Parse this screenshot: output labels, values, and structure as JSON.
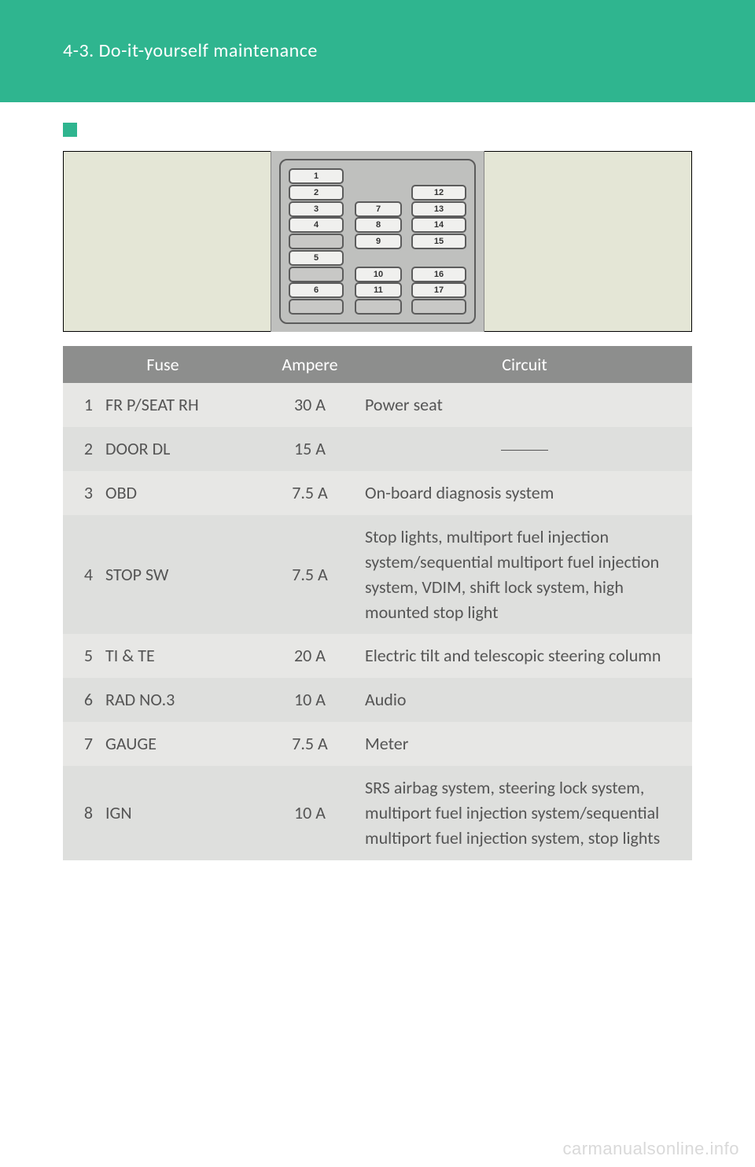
{
  "colors": {
    "header_bg": "#2fb58f",
    "diagram_bg": "#e4e6d6",
    "diagram_panel": "#bfc0be",
    "table_header_bg": "#8d8e8d",
    "row_alt_a": "#e7e7e5",
    "row_alt_b": "#dedfdd",
    "text_body": "#555555",
    "marker_fill": "#2fb58f"
  },
  "header": {
    "section": "4-3. Do-it-yourself maintenance"
  },
  "diagram": {
    "note_label": "",
    "col_a": [
      {
        "n": "1"
      },
      {
        "n": "2"
      },
      {
        "n": "3"
      },
      {
        "n": "4"
      },
      {
        "empty": true
      },
      {
        "n": "5"
      },
      {
        "empty": true
      },
      {
        "n": "6"
      },
      {
        "empty": true
      }
    ],
    "col_b": [
      {
        "gap": true
      },
      {
        "gap": true
      },
      {
        "n": "7"
      },
      {
        "n": "8"
      },
      {
        "n": "9"
      },
      {
        "gap": true
      },
      {
        "n": "10"
      },
      {
        "n": "11"
      },
      {
        "empty": true
      }
    ],
    "col_c": [
      {
        "gap": true
      },
      {
        "n": "12"
      },
      {
        "n": "13"
      },
      {
        "n": "14"
      },
      {
        "n": "15"
      },
      {
        "gap": true
      },
      {
        "n": "16"
      },
      {
        "n": "17"
      },
      {
        "empty": true
      }
    ],
    "tag": ""
  },
  "table": {
    "headers": {
      "fuse": "Fuse",
      "ampere": "Ampere",
      "circuit": "Circuit"
    },
    "rows": [
      {
        "idx": "1",
        "fuse": "FR P/SEAT RH",
        "amp": "30 A",
        "circuit": "Power seat"
      },
      {
        "idx": "2",
        "fuse": "DOOR DL",
        "amp": "15 A",
        "circuit": "",
        "dash": true
      },
      {
        "idx": "3",
        "fuse": "OBD",
        "amp": "7.5 A",
        "circuit": "On-board diagnosis system"
      },
      {
        "idx": "4",
        "fuse": "STOP SW",
        "amp": "7.5 A",
        "circuit": "Stop lights, multiport fuel injection system/sequential multiport fuel injection system, VDIM, shift lock system, high mounted stop light"
      },
      {
        "idx": "5",
        "fuse": "TI & TE",
        "amp": "20 A",
        "circuit": "Electric tilt and telescopic steering column"
      },
      {
        "idx": "6",
        "fuse": "RAD NO.3",
        "amp": "10 A",
        "circuit": "Audio"
      },
      {
        "idx": "7",
        "fuse": "GAUGE",
        "amp": "7.5 A",
        "circuit": "Meter"
      },
      {
        "idx": "8",
        "fuse": "IGN",
        "amp": "10 A",
        "circuit": "SRS airbag system, steering lock system, multiport fuel injection system/sequential multiport fuel injection system, stop lights"
      }
    ]
  },
  "footer": {
    "watermark": "carmanualsonline.info"
  }
}
